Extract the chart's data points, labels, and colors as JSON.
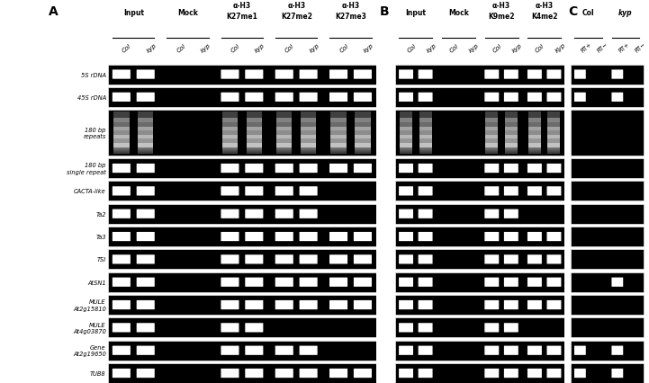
{
  "fig_width": 7.21,
  "fig_height": 4.27,
  "row_labels": [
    "5S rDNA",
    "45S rDNA",
    "180 bp\nrepeats",
    "180 bp\nsingle repeat",
    "CACTA-like",
    "Ta2",
    "Ta3",
    "TSI",
    "AtSN1",
    "MULE\nAt2g15810",
    "MULE\nAt4g03870",
    "Gene\nAt2g19650",
    "TUB8"
  ],
  "panel_A_headers": [
    "Input",
    "Mock",
    "α-H3\nK27me1",
    "α-H3\nK27me2",
    "α-H3\nK27me3"
  ],
  "panel_A_sublabels": [
    "Col",
    "kyp",
    "Col",
    "kyp",
    "Col",
    "kyp",
    "Col",
    "kyp",
    "Col",
    "kyp"
  ],
  "panel_B_headers": [
    "Input",
    "Mock",
    "α-H3\nK9me2",
    "α-H3\nK4me2"
  ],
  "panel_B_sublabels": [
    "Col",
    "kyp",
    "Col",
    "kyp",
    "Col",
    "kyp",
    "Col",
    "Kyp"
  ],
  "panel_C_sublabels": [
    "RT+",
    "RT−",
    "RT+",
    "RT−"
  ],
  "panel_C_col_header": "Col",
  "panel_C_kyp_header": "kyp"
}
